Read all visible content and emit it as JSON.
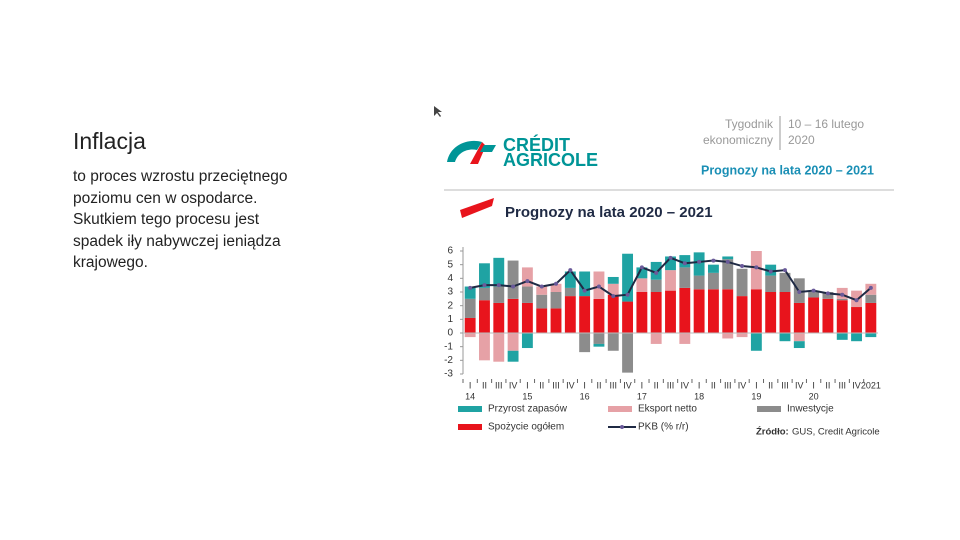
{
  "slide": {
    "title": "Inflacja",
    "body": [
      "to proces wzrostu przeciętnego",
      "poziomu cen w ospodarce.",
      "Skutkiem tego procesu jest",
      "spadek iły nabywczej ieniądza",
      "krajowego."
    ]
  },
  "report": {
    "publication": [
      "Tygodnik",
      "ekonomiczny"
    ],
    "date": [
      "10 – 16 lutego",
      "2020"
    ],
    "heading": "Prognozy na lata 2020 – 2021",
    "logo": [
      "CRÉDIT",
      "AGRICOLE"
    ]
  },
  "chart_data": {
    "type": "bar",
    "stacked": true,
    "title": "Prognozy na lata 2020 – 2021",
    "categories": [
      "I",
      "II",
      "III",
      "IV",
      "I",
      "II",
      "III",
      "IV",
      "I",
      "II",
      "III",
      "IV",
      "I",
      "II",
      "III",
      "IV",
      "I",
      "II",
      "III",
      "IV",
      "I",
      "II",
      "III",
      "IV",
      "I",
      "II",
      "III",
      "IV",
      "2021"
    ],
    "year_labels": [
      "14",
      null,
      null,
      null,
      "15",
      null,
      null,
      null,
      "16",
      null,
      null,
      null,
      "17",
      null,
      null,
      null,
      "18",
      null,
      null,
      null,
      "19",
      null,
      null,
      null,
      "20",
      null,
      null,
      null,
      null
    ],
    "series": [
      {
        "name": "Przyrost zapasów",
        "color": "#1fa3a3",
        "values": [
          0.9,
          1.8,
          2.1,
          -0.8,
          -1.1,
          0,
          0,
          1.2,
          1.8,
          -0.2,
          0.5,
          3.5,
          0.8,
          1.3,
          1.0,
          0.9,
          1.7,
          0.6,
          0.2,
          0,
          -1.3,
          0.8,
          -0.6,
          -0.5,
          0,
          0,
          -0.5,
          -0.6,
          -0.3
        ]
      },
      {
        "name": "Eksport netto",
        "color": "#e6a1a6",
        "values": [
          -0.3,
          -2.0,
          -2.1,
          -1.3,
          1.4,
          0.6,
          0.6,
          0,
          0,
          2.0,
          0.8,
          0,
          1.0,
          -0.8,
          1.5,
          -0.8,
          0,
          0,
          -0.4,
          -0.3,
          2.8,
          0,
          0,
          -0.6,
          0,
          0,
          0.8,
          1.2,
          0.8
        ]
      },
      {
        "name": "Inwestycje",
        "color": "#8c8c8c",
        "values": [
          1.4,
          0.9,
          1.2,
          2.8,
          1.2,
          1.0,
          1.2,
          0.6,
          -1.4,
          -0.8,
          -1.3,
          -2.9,
          0,
          0.9,
          0,
          1.5,
          1.0,
          1.2,
          2.2,
          2.0,
          0,
          1.2,
          1.4,
          1.8,
          0.4,
          0.5,
          0.1,
          0,
          0.6
        ]
      },
      {
        "name": "Spożycie ogółem",
        "color": "#e8141c",
        "values": [
          1.1,
          2.4,
          2.2,
          2.5,
          2.2,
          1.8,
          1.8,
          2.7,
          2.7,
          2.5,
          2.8,
          2.3,
          3.0,
          3.0,
          3.1,
          3.3,
          3.2,
          3.2,
          3.2,
          2.7,
          3.2,
          3.0,
          3.0,
          2.2,
          2.6,
          2.5,
          2.4,
          1.9,
          2.2
        ]
      },
      {
        "name": "PKB (% r/r)",
        "type": "line",
        "color": "#1f2a44",
        "values": [
          3.3,
          3.5,
          3.5,
          3.4,
          3.8,
          3.4,
          3.6,
          4.6,
          3.1,
          3.4,
          2.7,
          2.8,
          4.8,
          4.4,
          5.5,
          5.1,
          5.2,
          5.3,
          5.2,
          4.9,
          4.8,
          4.5,
          4.6,
          3.0,
          3.1,
          2.9,
          2.8,
          2.4,
          3.3
        ]
      }
    ],
    "ylim": [
      -3,
      6
    ],
    "yticks": [
      -3,
      -2,
      -1,
      0,
      1,
      2,
      3,
      4,
      5,
      6
    ],
    "grid": false,
    "source": {
      "label": "Źródło:",
      "text": "GUS, Credit Agricole"
    }
  }
}
